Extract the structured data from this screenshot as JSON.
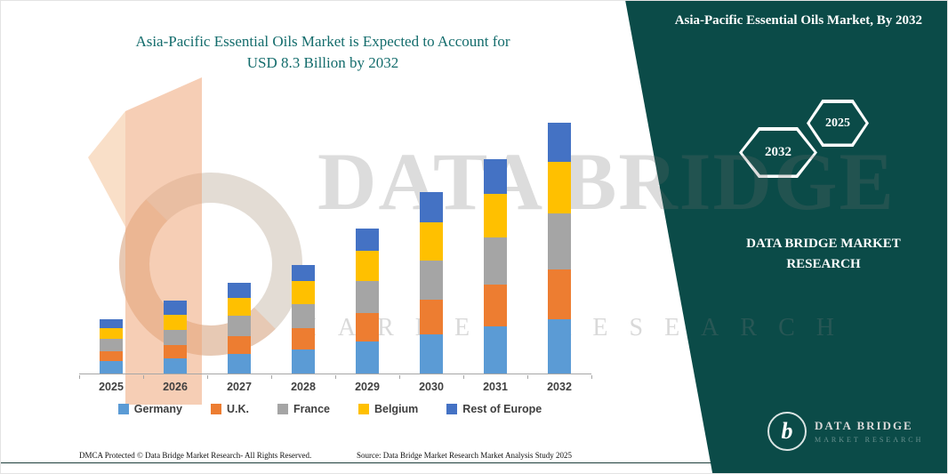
{
  "header": {
    "title_line1": "Asia-Pacific Essential Oils Market is Expected to Account for",
    "title_line2": "USD 8.3 Billion by 2032",
    "title_color": "#136c6c"
  },
  "side_panel": {
    "heading": "Asia-Pacific Essential Oils Market, By 2032",
    "panel_color": "#0b4b48",
    "hexagons": [
      {
        "label": "2032"
      },
      {
        "label": "2025"
      }
    ],
    "brand_text": "DATA BRIDGE MARKET RESEARCH",
    "logo": {
      "monogram": "b",
      "title": "DATA BRIDGE",
      "subtitle": "MARKET RESEARCH"
    }
  },
  "watermark": {
    "line1": "DATA BRIDGE",
    "line2": "MARKET RESEARCH"
  },
  "footer": {
    "dmca": "DMCA Protected © Data Bridge Market Research- All Rights Reserved.",
    "source": "Source: Data Bridge Market Research Market Analysis Study 2025"
  },
  "chart_data": {
    "type": "bar",
    "stacked": true,
    "title": "Asia-Pacific Essential Oils Market is Expected to Account for USD 8.3 Billion by 2032",
    "unit": "USD Billion",
    "categories": [
      "2025",
      "2026",
      "2027",
      "2028",
      "2029",
      "2030",
      "2031",
      "2032"
    ],
    "series": [
      {
        "name": "Germany",
        "color": "#5B9BD5",
        "values": [
          0.4,
          0.5,
          0.65,
          0.8,
          1.05,
          1.3,
          1.55,
          1.8
        ]
      },
      {
        "name": "U.K.",
        "color": "#ED7D31",
        "values": [
          0.35,
          0.45,
          0.6,
          0.7,
          0.95,
          1.15,
          1.4,
          1.65
        ]
      },
      {
        "name": "France",
        "color": "#A5A5A5",
        "values": [
          0.4,
          0.5,
          0.65,
          0.8,
          1.05,
          1.3,
          1.55,
          1.85
        ]
      },
      {
        "name": "Belgium",
        "color": "#FFC000",
        "values": [
          0.35,
          0.5,
          0.6,
          0.75,
          1.0,
          1.25,
          1.45,
          1.7
        ]
      },
      {
        "name": "Rest of Europe",
        "color": "#4472C4",
        "values": [
          0.3,
          0.45,
          0.5,
          0.55,
          0.75,
          1.0,
          1.15,
          1.3
        ]
      }
    ],
    "totals": [
      1.8,
      2.4,
      3.0,
      3.6,
      4.8,
      6.0,
      7.1,
      8.3
    ],
    "ylim": [
      0,
      8.6
    ],
    "y_axis_visible": false,
    "grid": false,
    "legend_position": "bottom"
  }
}
